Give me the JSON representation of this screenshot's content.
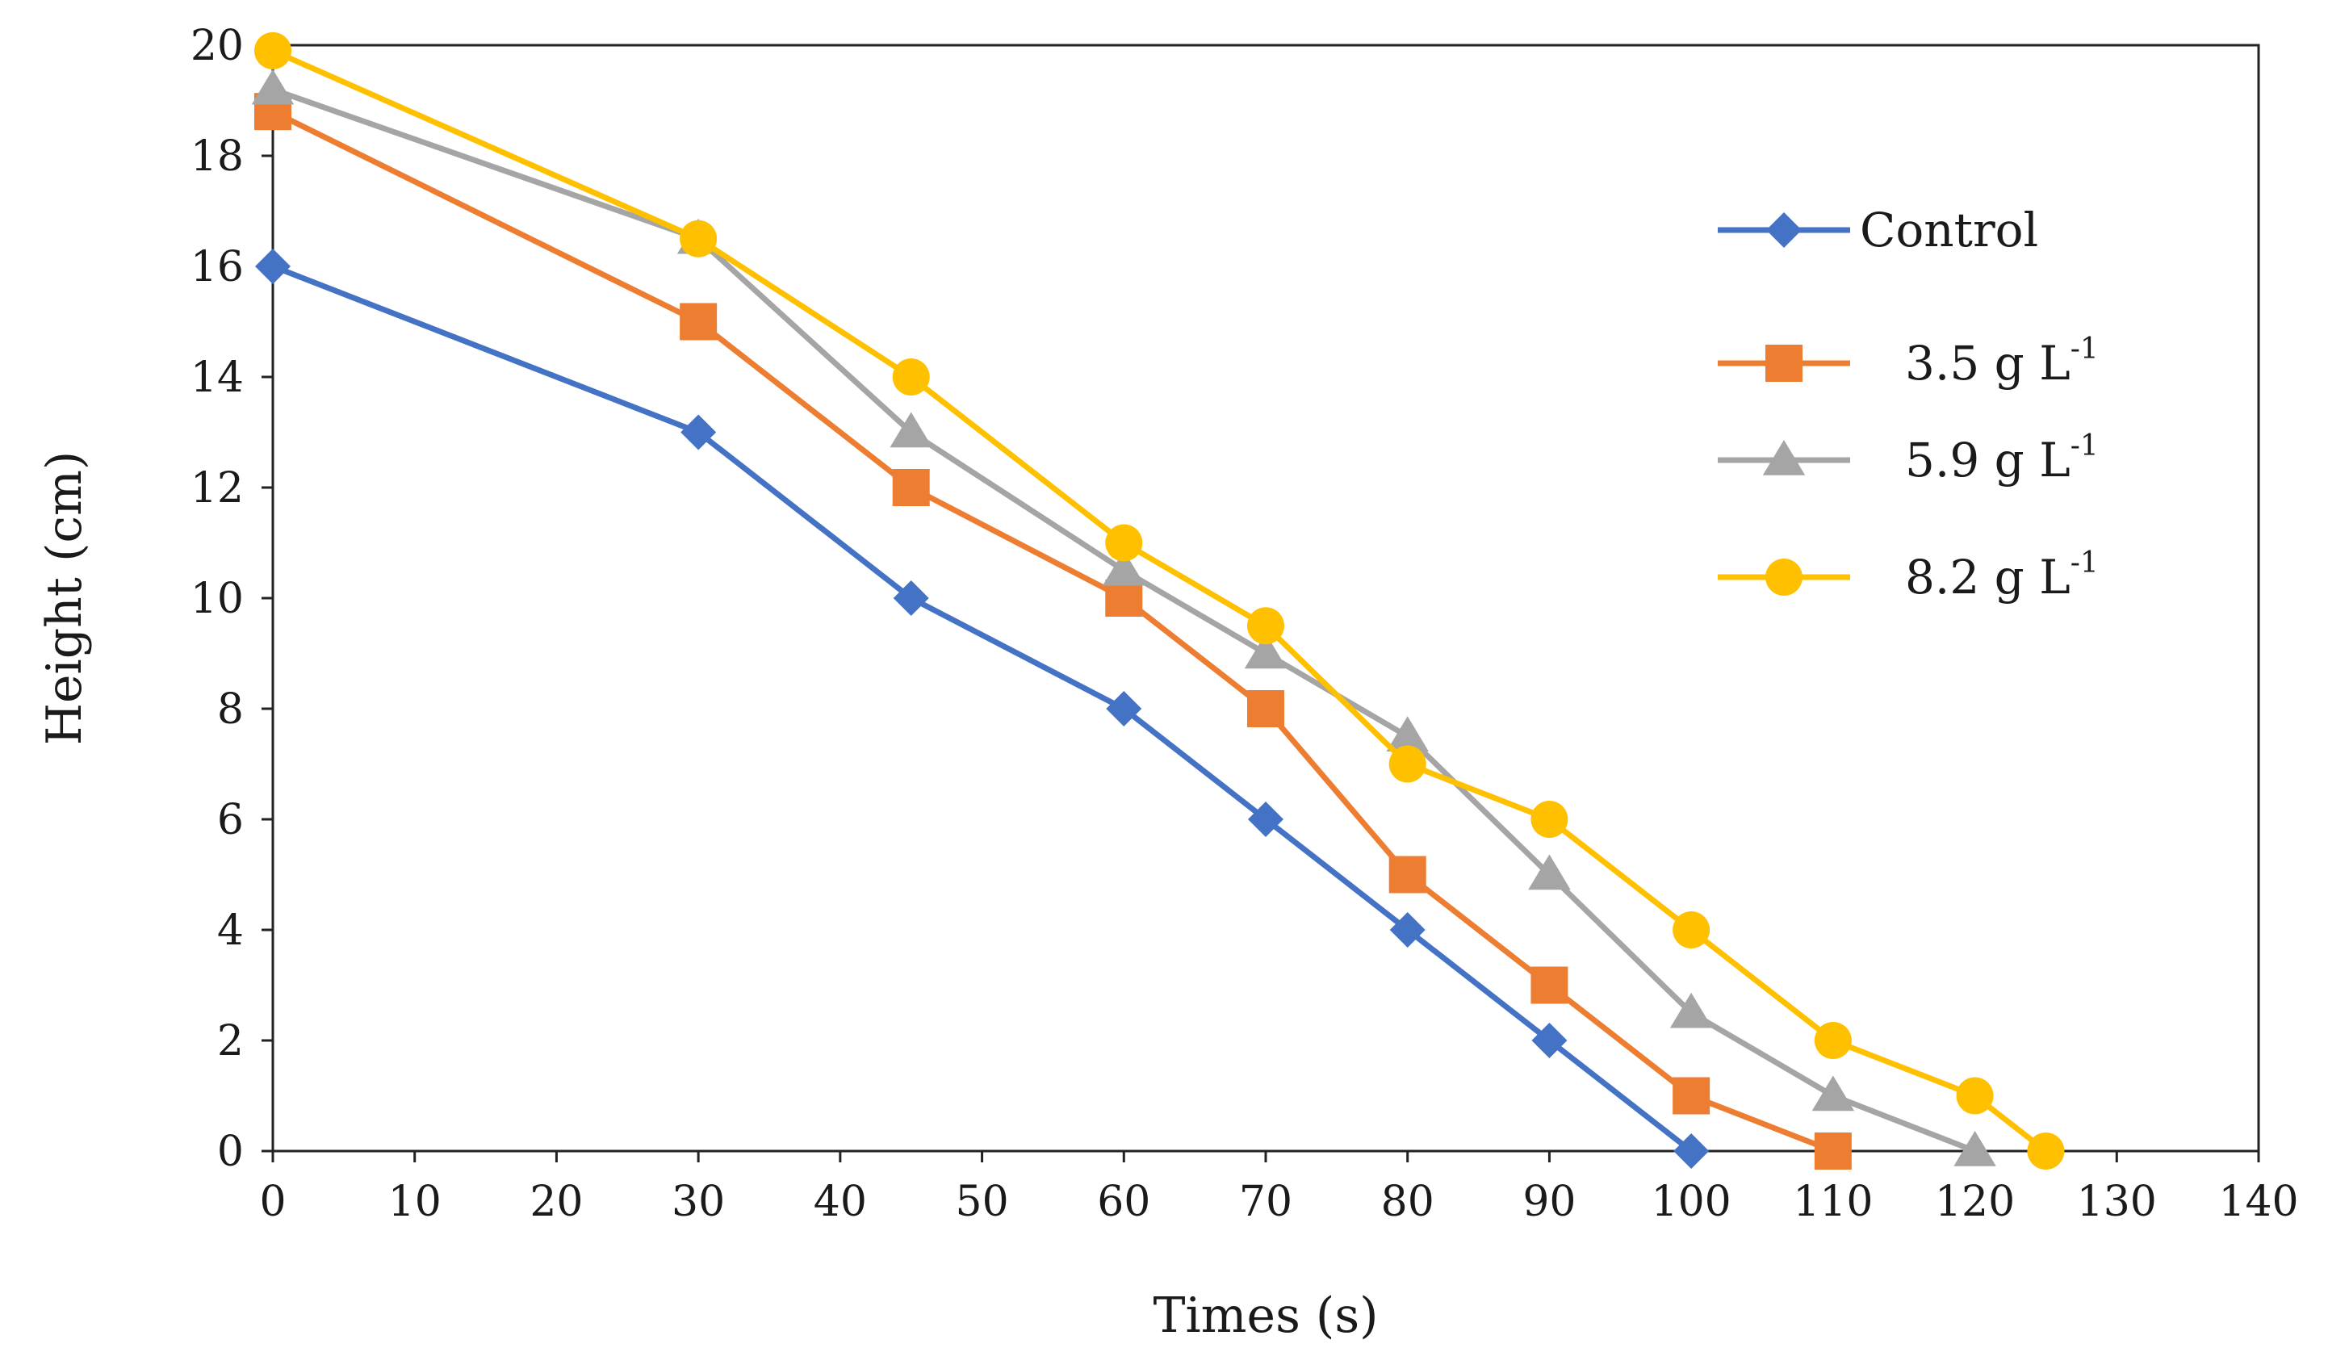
{
  "chart_data": {
    "type": "line",
    "title": "",
    "xlabel": "Times (s)",
    "ylabel": "Height (cm)",
    "xlim": [
      0,
      140
    ],
    "ylim": [
      0,
      20
    ],
    "xticks": [
      0,
      10,
      20,
      30,
      40,
      50,
      60,
      70,
      80,
      90,
      100,
      110,
      120,
      130,
      140
    ],
    "yticks": [
      0,
      2,
      4,
      6,
      8,
      10,
      12,
      14,
      16,
      18,
      20
    ],
    "grid": false,
    "legend_position": "right",
    "series": [
      {
        "name": "Control",
        "label_main": "Control",
        "label_sup": "",
        "color": "#4472C4",
        "marker": "diamond",
        "x": [
          0,
          30,
          45,
          60,
          70,
          80,
          90,
          100
        ],
        "values": [
          16,
          13,
          10,
          8,
          6,
          4,
          2,
          0
        ]
      },
      {
        "name": "3.5 g L-1",
        "label_main": "3.5 g L",
        "label_sup": "-1",
        "color": "#ED7D31",
        "marker": "square",
        "x": [
          0,
          30,
          45,
          60,
          70,
          80,
          90,
          100,
          110
        ],
        "values": [
          18.8,
          15,
          12,
          10,
          8,
          5,
          3,
          1,
          0
        ]
      },
      {
        "name": "5.9 g L-1",
        "label_main": "5.9 g L",
        "label_sup": "-1",
        "color": "#A5A5A5",
        "marker": "triangle",
        "x": [
          0,
          30,
          45,
          60,
          70,
          80,
          90,
          100,
          110,
          120
        ],
        "values": [
          19.2,
          16.5,
          13,
          10.5,
          9,
          7.5,
          5,
          2.5,
          1,
          0
        ]
      },
      {
        "name": "8.2 g L-1",
        "label_main": "8.2 g L",
        "label_sup": "-1",
        "color": "#FFC000",
        "marker": "circle",
        "x": [
          0,
          30,
          45,
          60,
          70,
          80,
          90,
          100,
          110,
          120,
          125
        ],
        "values": [
          19.9,
          16.5,
          14,
          11,
          9.5,
          7,
          6,
          4,
          2,
          1,
          0
        ]
      }
    ]
  }
}
